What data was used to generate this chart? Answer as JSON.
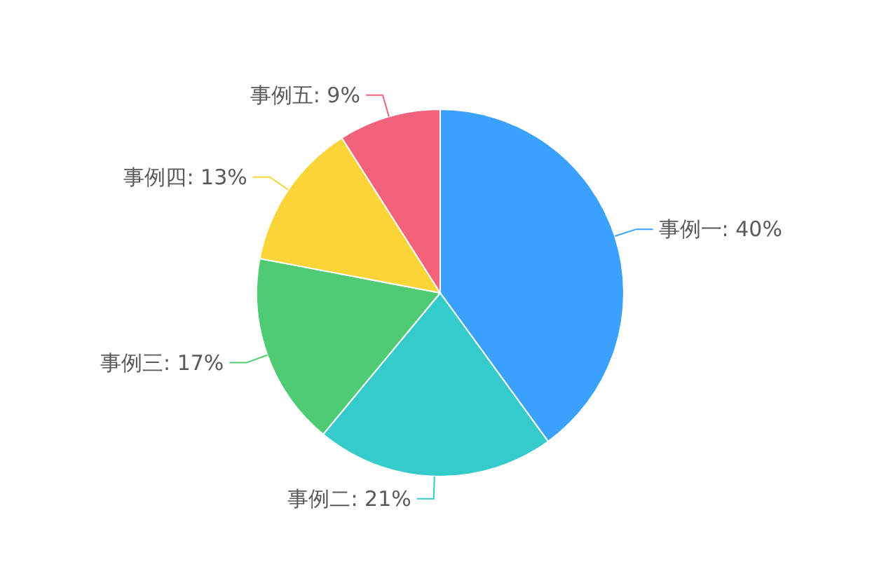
{
  "chart_data": {
    "type": "pie",
    "categories": [
      "事例一: 40%",
      "事例二: 21%",
      "事例三: 17%",
      "事例四: 13%",
      "事例五: 9%"
    ],
    "values": [
      40,
      21,
      17,
      13,
      9
    ],
    "colors": [
      "#3aa1ff",
      "#36cbcb",
      "#4ecb73",
      "#fbd437",
      "#f2637b"
    ]
  }
}
